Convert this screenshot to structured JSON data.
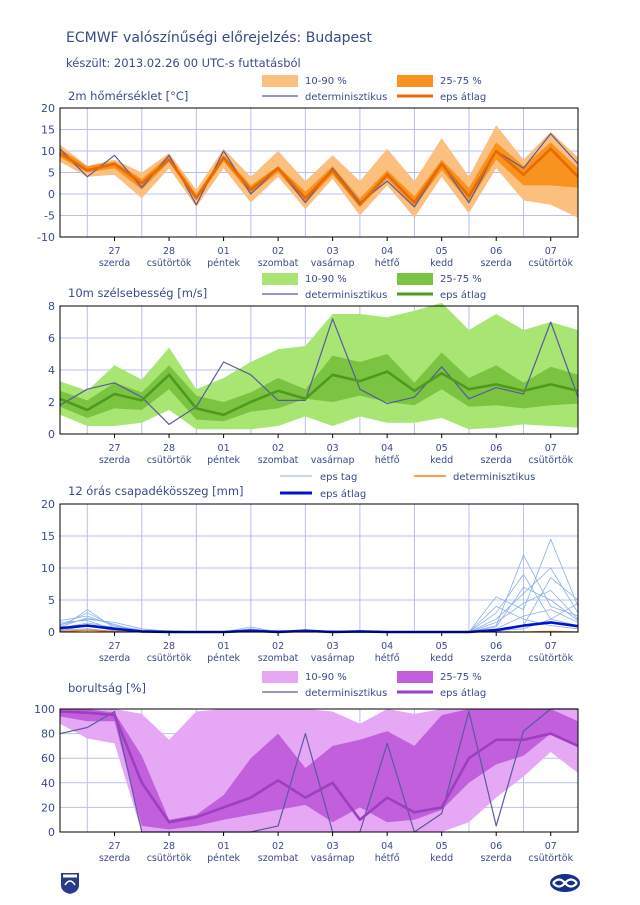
{
  "header": {
    "title": "ECMWF valószínűségi előrejelzés: Budapest",
    "subtitle": "készült: 2013.02.26 00 UTC-s futtatásból"
  },
  "days": [
    "27",
    "28",
    "01",
    "02",
    "03",
    "04",
    "05",
    "06",
    "07"
  ],
  "weekdays": [
    "szerda",
    "csütörtök",
    "péntek",
    "szombat",
    "vasárnap",
    "hétfő",
    "kedd",
    "szerda",
    "csütörtök"
  ],
  "colors": {
    "text": "#3a4a8a",
    "grid": "#b9bff2",
    "temp_outer": "#fbbf7e",
    "temp_inner": "#f7931e",
    "temp_mean": "#e86a00",
    "wind_outer": "#a9e572",
    "wind_inner": "#7bc441",
    "wind_mean": "#4e9a1d",
    "cloud_outer": "#e6a8f5",
    "cloud_inner": "#c15fdc",
    "cloud_mean": "#9d3fbe",
    "det": "#5a5a9e",
    "precip_member": "#8ab0ec",
    "precip_mean": "#0015c9",
    "precip_det": "#f77e10"
  },
  "chart_data": [
    {
      "type": "area",
      "title": "2m hőmérséklet [°C]",
      "ylim": [
        -10,
        20
      ],
      "yticks": [
        -10,
        -5,
        0,
        5,
        10,
        15,
        20
      ],
      "grid": true,
      "legend": {
        "outer": "10-90 %",
        "inner": "25-75 %",
        "det": "determinisztikus",
        "mean": "eps átlag"
      },
      "series": {
        "p10": [
          7.5,
          4,
          4.5,
          -1,
          6,
          -3,
          6,
          -2,
          4,
          -3.5,
          3.5,
          -5,
          2,
          -5.5,
          4,
          -4.5,
          6,
          -1.5,
          -2.5,
          -5.5
        ],
        "p25": [
          8.5,
          5,
          6,
          1,
          7.5,
          -1.5,
          7.5,
          0,
          5,
          -2,
          4.5,
          -3,
          3.5,
          -3,
          5.5,
          -2,
          8,
          2,
          2,
          1.5
        ],
        "p75": [
          10.5,
          6.5,
          7.5,
          3.5,
          9,
          0,
          9,
          2,
          6.5,
          0.5,
          6.5,
          -1,
          5.5,
          -0.5,
          8,
          1.5,
          12,
          6.5,
          12,
          6
        ],
        "p90": [
          11.5,
          6.5,
          8,
          5,
          9.5,
          1,
          10.5,
          4,
          10,
          3,
          9,
          3,
          10.5,
          3,
          13,
          4,
          16,
          8,
          14.5,
          8.5
        ],
        "mean": [
          9.5,
          5.5,
          7,
          2.5,
          8,
          -1,
          8.5,
          1,
          6,
          -1,
          5.5,
          -2.5,
          4.5,
          -2,
          7,
          -0.5,
          10,
          4.5,
          10.5,
          4
        ],
        "det": [
          10.5,
          4,
          9,
          1.5,
          9,
          -2.5,
          10,
          0,
          6,
          -2,
          6,
          -2,
          3,
          -3,
          7,
          -2,
          10,
          6,
          14,
          7
        ]
      }
    },
    {
      "type": "area",
      "title": "10m szélsebesség [m/s]",
      "ylim": [
        0,
        8
      ],
      "yticks": [
        0,
        2,
        4,
        6,
        8
      ],
      "grid": true,
      "legend": {
        "outer": "10-90 %",
        "inner": "25-75 %",
        "det": "determinisztikus",
        "mean": "eps átlag"
      },
      "series": {
        "p10": [
          1.2,
          0.5,
          0.5,
          0.7,
          1.5,
          0.3,
          0.3,
          0.3,
          0.5,
          1.1,
          0.5,
          1.1,
          0.7,
          0.7,
          1.0,
          0.3,
          0.4,
          0.6,
          0.5,
          0.4
        ],
        "p25": [
          1.7,
          1.0,
          1.6,
          1.5,
          2.8,
          0.9,
          0.8,
          1.4,
          1.6,
          2.2,
          2.0,
          2.4,
          2.0,
          1.8,
          2.8,
          1.7,
          1.8,
          1.6,
          1.8,
          1.9
        ],
        "p75": [
          2.7,
          2.1,
          3.2,
          2.6,
          4.3,
          2.4,
          2.0,
          2.6,
          3.5,
          2.8,
          4.9,
          4.5,
          5.0,
          3.2,
          5.1,
          3.5,
          4.3,
          3.2,
          4.2,
          3.7
        ],
        "p90": [
          3.3,
          2.7,
          4.3,
          3.4,
          5.4,
          2.8,
          3.5,
          4.5,
          5.3,
          5.5,
          7.5,
          7.5,
          7.3,
          7.7,
          8.2,
          6.5,
          7.5,
          6.5,
          7.0,
          6.5
        ],
        "mean": [
          2.2,
          1.5,
          2.5,
          2.1,
          3.7,
          1.6,
          1.2,
          2.0,
          2.7,
          2.2,
          3.7,
          3.3,
          3.9,
          2.7,
          3.8,
          2.8,
          3.1,
          2.7,
          3.1,
          2.7
        ],
        "det": [
          1.8,
          2.8,
          3.2,
          2.3,
          0.6,
          1.7,
          4.5,
          3.7,
          2.1,
          2.1,
          7.2,
          2.8,
          1.9,
          2.3,
          4.2,
          2.2,
          2.9,
          2.5,
          7.0,
          2.3
        ]
      }
    },
    {
      "type": "line",
      "title": "12 órás csapadékösszeg [mm]",
      "ylim": [
        0,
        20
      ],
      "yticks": [
        0,
        5,
        10,
        15,
        20
      ],
      "grid": true,
      "legend": {
        "member": "eps tag",
        "det": "determinisztikus",
        "mean": "eps átlag"
      },
      "members": [
        [
          1.8,
          2.5,
          1.0,
          0.3,
          0.2,
          0.0,
          0.0,
          0.0,
          0.0,
          0.0,
          0.0,
          0.0,
          0.0,
          0.0,
          0.0,
          0.0,
          5.5,
          3.5,
          14.5,
          4.0
        ],
        [
          0.5,
          3.5,
          0.6,
          0.2,
          0.0,
          0.0,
          0.0,
          0.5,
          0.0,
          0.2,
          0.0,
          0.0,
          0.0,
          0.0,
          0.0,
          0.0,
          1.0,
          12.0,
          4.0,
          2.5
        ],
        [
          1.2,
          2.0,
          1.5,
          0.5,
          0.1,
          0.0,
          0.1,
          0.2,
          0.1,
          0.0,
          0.1,
          0.0,
          0.0,
          0.0,
          0.0,
          0.0,
          3.0,
          9.0,
          2.0,
          1.0
        ],
        [
          0.2,
          1.0,
          0.2,
          0.0,
          0.0,
          0.0,
          0.0,
          0.0,
          0.3,
          0.0,
          0.0,
          0.0,
          0.0,
          0.0,
          0.0,
          0.0,
          0.0,
          1.0,
          8.5,
          5.0
        ],
        [
          1.0,
          3.0,
          0.9,
          0.1,
          0.0,
          0.0,
          0.0,
          0.8,
          0.0,
          0.1,
          0.0,
          0.2,
          0.0,
          0.0,
          0.0,
          0.0,
          2.0,
          6.0,
          10.0,
          3.0
        ],
        [
          0.3,
          0.5,
          0.1,
          0.0,
          0.0,
          0.0,
          0.0,
          0.0,
          0.0,
          0.0,
          0.0,
          0.0,
          0.0,
          0.0,
          0.0,
          0.0,
          0.5,
          2.5,
          3.5,
          1.5
        ],
        [
          1.5,
          1.8,
          0.4,
          0.2,
          0.0,
          0.0,
          0.0,
          0.3,
          0.0,
          0.0,
          0.2,
          0.0,
          0.0,
          0.0,
          0.0,
          0.0,
          1.5,
          4.5,
          6.5,
          2.0
        ],
        [
          0.8,
          2.2,
          1.2,
          0.0,
          0.0,
          0.0,
          0.0,
          0.0,
          0.1,
          0.0,
          0.0,
          0.0,
          0.0,
          0.0,
          0.0,
          0.0,
          4.0,
          2.0,
          1.0,
          0.5
        ],
        [
          0.0,
          0.3,
          0.0,
          0.0,
          0.0,
          0.0,
          0.0,
          0.0,
          0.0,
          0.0,
          0.0,
          0.0,
          0.0,
          0.0,
          0.0,
          0.0,
          0.2,
          0.5,
          2.0,
          4.5
        ],
        [
          0.6,
          1.4,
          0.7,
          0.1,
          0.0,
          0.0,
          0.0,
          0.2,
          0.0,
          0.0,
          0.0,
          0.0,
          0.0,
          0.0,
          0.0,
          0.0,
          0.8,
          7.0,
          5.0,
          1.8
        ]
      ],
      "series": {
        "mean": [
          0.6,
          1.0,
          0.5,
          0.1,
          0.0,
          0.0,
          0.0,
          0.2,
          0.0,
          0.2,
          0.0,
          0.1,
          0.0,
          0.0,
          0.0,
          0.0,
          0.3,
          1.0,
          1.5,
          0.9
        ],
        "det": [
          0.1,
          0.3,
          0.1,
          0.0,
          0.0,
          0.0,
          0.0,
          0.0,
          0.0,
          0.0,
          0.0,
          0.0,
          0.0,
          0.0,
          0.0,
          0.0,
          0.0,
          0.0,
          0.1,
          0.0
        ]
      }
    },
    {
      "type": "area",
      "title": "borultság [%]",
      "ylim": [
        0,
        100
      ],
      "yticks": [
        0,
        20,
        40,
        60,
        80,
        100
      ],
      "grid": true,
      "legend": {
        "outer": "10-90 %",
        "inner": "25-75 %",
        "det": "determinisztikus",
        "mean": "eps átlag"
      },
      "series": {
        "p10": [
          88,
          76,
          72,
          0,
          0,
          0,
          0,
          0,
          0,
          0,
          0,
          0,
          0,
          0,
          0,
          8,
          28,
          45,
          65,
          48
        ],
        "p25": [
          94,
          90,
          90,
          5,
          2,
          5,
          10,
          14,
          18,
          22,
          8,
          20,
          8,
          10,
          18,
          40,
          55,
          62,
          80,
          70
        ],
        "p75": [
          100,
          100,
          97,
          62,
          10,
          14,
          30,
          60,
          80,
          52,
          70,
          75,
          82,
          70,
          95,
          100,
          100,
          100,
          100,
          90
        ],
        "p90": [
          100,
          100,
          100,
          96,
          75,
          98,
          100,
          100,
          100,
          100,
          98,
          88,
          100,
          96,
          100,
          100,
          100,
          100,
          100,
          100
        ],
        "mean": [
          98,
          97,
          95,
          40,
          8,
          12,
          20,
          28,
          42,
          28,
          40,
          10,
          28,
          16,
          20,
          60,
          75,
          75,
          80,
          70
        ],
        "det": [
          80,
          85,
          98,
          0,
          0,
          0,
          0,
          0,
          5,
          80,
          0,
          0,
          72,
          0,
          15,
          98,
          5,
          82,
          100,
          100
        ]
      }
    }
  ]
}
